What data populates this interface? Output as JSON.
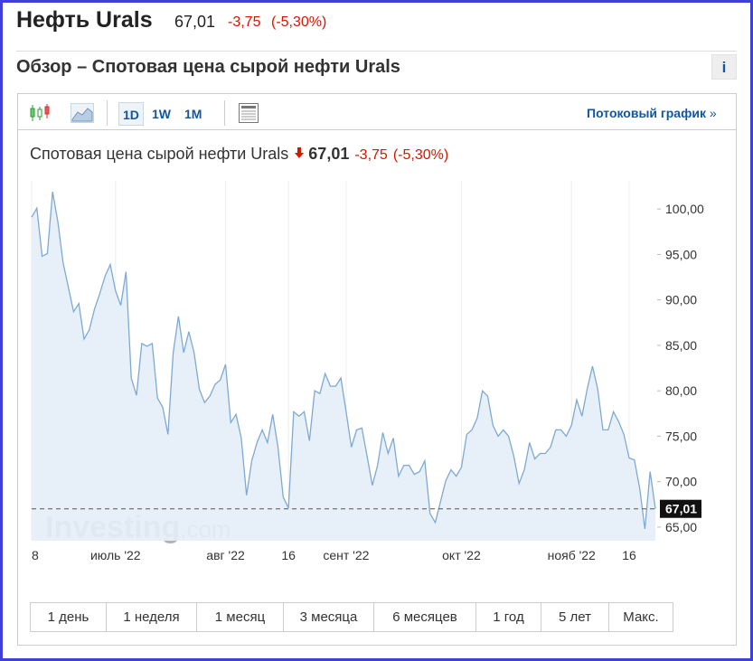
{
  "header": {
    "title": "Нефть Urals",
    "price": "67,01",
    "change": "-3,75",
    "change_pct": "(-5,30%)"
  },
  "section": {
    "title": "Обзор – Спотовая цена сырой нефти Urals",
    "info": "i"
  },
  "toolbar": {
    "intervals": [
      "1D",
      "1W",
      "1M"
    ],
    "stream_link": "Потоковый график",
    "stream_arrow": "»"
  },
  "quote": {
    "name": "Спотовая цена сырой нефти Urals",
    "price": "67,01",
    "change": "-3,75",
    "change_pct": "(-5,30%)"
  },
  "ranges": [
    "1 день",
    "1 неделя",
    "1 месяц",
    "3 месяца",
    "6 месяцев",
    "1 год",
    "5 лет",
    "Макс."
  ],
  "chart_data": {
    "type": "area",
    "watermark": [
      "Investing",
      ".com"
    ],
    "color": "#7fa9d1",
    "fill": "#e4eef7",
    "categories": [
      "8",
      null,
      null,
      null,
      null,
      null,
      null,
      null,
      null,
      null,
      null,
      null,
      null,
      null,
      null,
      null,
      "июль '22",
      null,
      null,
      null,
      null,
      null,
      null,
      null,
      null,
      null,
      null,
      null,
      null,
      null,
      null,
      null,
      null,
      null,
      null,
      null,
      null,
      "авг '22",
      null,
      null,
      null,
      null,
      null,
      null,
      null,
      null,
      null,
      null,
      null,
      "16",
      null,
      null,
      null,
      null,
      null,
      null,
      null,
      null,
      null,
      null,
      "сент '22",
      null,
      null,
      null,
      null,
      null,
      null,
      null,
      null,
      null,
      null,
      null,
      null,
      null,
      null,
      null,
      null,
      null,
      null,
      null,
      null,
      null,
      "окт '22",
      null,
      null,
      null,
      null,
      null,
      null,
      null,
      null,
      null,
      null,
      null,
      null,
      null,
      null,
      null,
      null,
      null,
      null,
      null,
      null,
      "нояб '22",
      null,
      null,
      null,
      null,
      null,
      null,
      null,
      null,
      null,
      null,
      "16",
      null,
      null,
      null,
      null,
      null
    ],
    "values": [
      99.1,
      100.1,
      94.8,
      95.1,
      101.9,
      98.6,
      94.1,
      91.4,
      88.7,
      89.6,
      85.7,
      86.7,
      89.0,
      90.7,
      92.6,
      93.9,
      91.0,
      89.4,
      93.1,
      81.4,
      79.5,
      85.2,
      84.9,
      85.2,
      79.2,
      78.2,
      75.2,
      84.2,
      88.2,
      84.2,
      86.5,
      84.2,
      80.2,
      78.7,
      79.4,
      80.7,
      81.2,
      82.9,
      76.5,
      77.4,
      74.8,
      68.5,
      72.3,
      74.3,
      75.7,
      74.3,
      77.4,
      73.8,
      68.3,
      67.1,
      77.7,
      77.2,
      77.7,
      74.5,
      80.0,
      79.7,
      81.9,
      80.5,
      80.5,
      81.4,
      77.7,
      73.8,
      75.7,
      75.9,
      72.8,
      69.6,
      71.8,
      75.4,
      73.1,
      74.8,
      70.6,
      71.8,
      71.8,
      70.8,
      71.1,
      72.3,
      66.5,
      65.5,
      67.8,
      70.1,
      71.3,
      70.6,
      71.6,
      75.2,
      75.7,
      77.0,
      80.0,
      79.4,
      76.2,
      75.0,
      75.7,
      75.0,
      72.8,
      69.8,
      71.3,
      74.3,
      72.5,
      73.1,
      73.1,
      73.8,
      75.7,
      75.7,
      75.0,
      76.2,
      79.0,
      77.2,
      80.2,
      82.7,
      80.2,
      75.7,
      75.7,
      77.7,
      76.6,
      75.2,
      72.6,
      72.4,
      69.3,
      64.8,
      71.1,
      67.01
    ],
    "ylim": [
      63.5,
      103.1
    ],
    "yticks": [
      {
        "value": 65,
        "label": "65,00"
      },
      {
        "value": 70,
        "label": "70,00"
      },
      {
        "value": 75,
        "label": "75,00"
      },
      {
        "value": 80,
        "label": "80,00"
      },
      {
        "value": 85,
        "label": "85,00"
      },
      {
        "value": 90,
        "label": "90,00"
      },
      {
        "value": 95,
        "label": "95,00"
      },
      {
        "value": 100,
        "label": "100,00"
      }
    ],
    "marker": {
      "value": 67.01,
      "label": "67,01"
    },
    "grid": true
  }
}
